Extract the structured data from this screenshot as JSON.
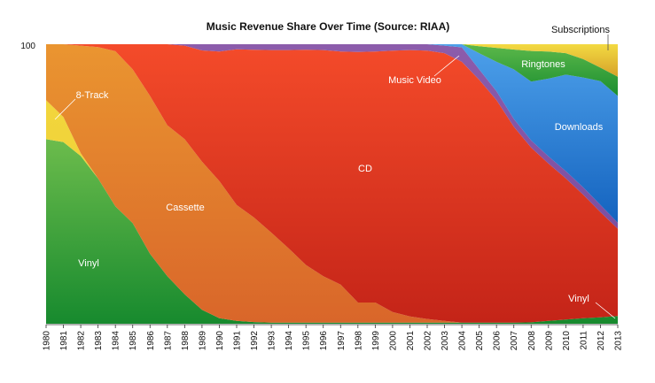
{
  "chart_data": {
    "type": "area",
    "stacked": true,
    "title": "Music Revenue Share Over Time (Source: RIAA)",
    "xlabel": "",
    "ylabel": "",
    "ylim": [
      0,
      100
    ],
    "y_tick_labels": [
      "100"
    ],
    "grid": false,
    "legend": "none (inline labels)",
    "categories": [
      "1980",
      "1981",
      "1982",
      "1983",
      "1984",
      "1985",
      "1986",
      "1987",
      "1988",
      "1989",
      "1990",
      "1991",
      "1992",
      "1993",
      "1994",
      "1995",
      "1996",
      "1997",
      "1998",
      "1999",
      "2000",
      "2001",
      "2002",
      "2003",
      "2004",
      "2005",
      "2006",
      "2007",
      "2008",
      "2009",
      "2010",
      "2011",
      "2012",
      "2013"
    ],
    "series": [
      {
        "name": "Vinyl",
        "color_top": "#6cbc4c",
        "color_bottom": "#178a2e",
        "values": [
          66,
          65,
          60,
          52,
          42,
          36,
          25,
          17,
          10.5,
          5,
          2,
          1,
          0.6,
          0.4,
          0.4,
          0.4,
          0.4,
          0.4,
          0.4,
          0.4,
          0.4,
          0.4,
          0.4,
          0.4,
          0.4,
          0.4,
          0.4,
          0.4,
          0.5,
          1,
          1.5,
          2,
          2.3,
          2.8
        ]
      },
      {
        "name": "8-Track",
        "color_top": "#f2d63c",
        "color_bottom": "#ecc935",
        "values": [
          14,
          9,
          1,
          0,
          0,
          0,
          0,
          0,
          0,
          0,
          0,
          0,
          0,
          0,
          0,
          0,
          0,
          0,
          0,
          0,
          0,
          0,
          0,
          0,
          0,
          0,
          0,
          0,
          0,
          0,
          0,
          0,
          0,
          0
        ]
      },
      {
        "name": "Cassette",
        "color_top": "#ea9530",
        "color_bottom": "#d9662a",
        "values": [
          20,
          26,
          38.5,
          47,
          55.5,
          55,
          56.5,
          54,
          55.5,
          53,
          49,
          41.5,
          37.4,
          32.2,
          26.6,
          20.6,
          16.6,
          13.6,
          7.2,
          7.2,
          3.8,
          2.2,
          1.3,
          0.6,
          0,
          0,
          0,
          0,
          0,
          0,
          0,
          0,
          0,
          0
        ]
      },
      {
        "name": "CD",
        "color_top": "#f44b2a",
        "color_bottom": "#c42418",
        "values": [
          0,
          0,
          0.5,
          1,
          2.5,
          9,
          18.5,
          29,
          33.5,
          39.8,
          46.4,
          55.7,
          60,
          65.3,
          70.9,
          77,
          80.9,
          83.4,
          89.6,
          89.8,
          93.5,
          95.3,
          96,
          95.8,
          93.3,
          86.9,
          79.6,
          70.1,
          62.5,
          56.3,
          50.5,
          44.2,
          37.6,
          31.2
        ]
      },
      {
        "name": "Music Video",
        "color_top": "#8c5cab",
        "color_bottom": "#7d4fa0",
        "values": [
          0,
          0,
          0,
          0,
          0,
          0,
          0,
          0,
          0.5,
          2.2,
          2.6,
          1.8,
          2,
          2.1,
          2.1,
          2,
          2.1,
          2.6,
          2.8,
          2.6,
          2.3,
          2.1,
          2.3,
          2.7,
          5.2,
          3.7,
          3.2,
          2.8,
          2.6,
          2.6,
          2.6,
          2.6,
          2.6,
          2.1
        ]
      },
      {
        "name": "Downloads",
        "color_top": "#4da0ea",
        "color_bottom": "#1463bf",
        "values": [
          0,
          0,
          0,
          0,
          0,
          0,
          0,
          0,
          0,
          0,
          0,
          0,
          0,
          0,
          0,
          0,
          0,
          0,
          0,
          0,
          0,
          0,
          0,
          0.5,
          1.1,
          5.8,
          10.5,
          17.7,
          21,
          27.8,
          34.5,
          39.3,
          44.3,
          45.4
        ]
      },
      {
        "name": "Ringtones",
        "color_top": "#5cb84a",
        "color_bottom": "#1a8e30",
        "values": [
          0,
          0,
          0,
          0,
          0,
          0,
          0,
          0,
          0,
          0,
          0,
          0,
          0,
          0,
          0,
          0,
          0,
          0,
          0,
          0,
          0,
          0,
          0,
          0,
          0,
          2.5,
          5,
          7.1,
          11,
          9.7,
          7.7,
          6.6,
          4.8,
          6.9
        ]
      },
      {
        "name": "Subscriptions",
        "color_top": "#f3da42",
        "color_bottom": "#d6a22a",
        "values": [
          0,
          0,
          0,
          0,
          0,
          0,
          0,
          0,
          0,
          0,
          0,
          0,
          0,
          0,
          0,
          0,
          0,
          0,
          0,
          0,
          0,
          0,
          0,
          0,
          0,
          0.7,
          1.3,
          1.9,
          2.4,
          2.6,
          3.2,
          5.3,
          8.4,
          11.6
        ]
      }
    ],
    "annotations": {
      "vinyl_left": "Vinyl",
      "eight_track": "8-Track",
      "cassette": "Cassette",
      "cd": "CD",
      "music_video": "Music Video",
      "downloads": "Downloads",
      "ringtones": "Ringtones",
      "subscriptions": "Subscriptions",
      "vinyl_right": "Vinyl"
    }
  }
}
